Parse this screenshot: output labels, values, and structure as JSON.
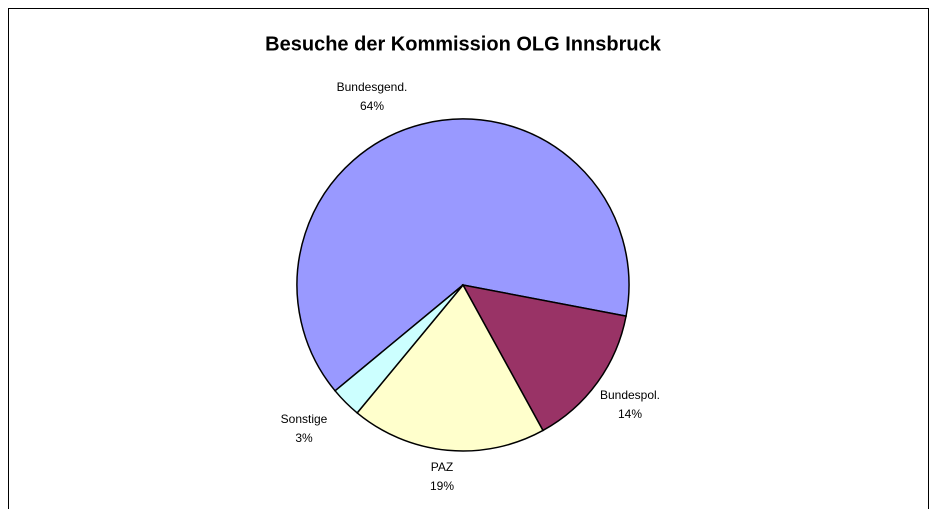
{
  "chart_data": {
    "type": "pie",
    "title": "Besuche der Kommission OLG Innsbruck",
    "categories": [
      "Bundesgend.",
      "Bundespol.",
      "PAZ",
      "Sonstige"
    ],
    "values": [
      64,
      14,
      19,
      3
    ],
    "value_labels": [
      "64%",
      "14%",
      "19%",
      "3%"
    ],
    "colors": [
      "#9999ff",
      "#993366",
      "#ffffcc",
      "#ccffff"
    ]
  }
}
